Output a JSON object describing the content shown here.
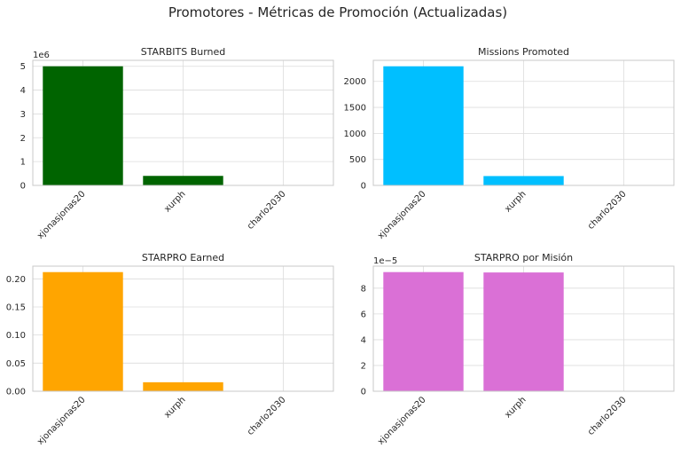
{
  "figure": {
    "title": "Promotores - Métricas de Promoción (Actualizadas)"
  },
  "chart_data": [
    {
      "type": "bar",
      "title": "STARBITS Burned",
      "categories": [
        "xjonasjonas20",
        "xurph",
        "charlo2030"
      ],
      "values": [
        5000000,
        400000,
        0
      ],
      "ylim": [
        0,
        5250000
      ],
      "yticks": [
        0,
        1000000,
        2000000,
        3000000,
        4000000,
        5000000
      ],
      "ytick_labels": [
        "0",
        "1",
        "2",
        "3",
        "4",
        "5"
      ],
      "offset_label": "1e6",
      "color": "#006400",
      "grid": true
    },
    {
      "type": "bar",
      "title": "Missions Promoted",
      "categories": [
        "xjonasjonas20",
        "xurph",
        "charlo2030"
      ],
      "values": [
        2290,
        180,
        0
      ],
      "ylim": [
        0,
        2404.5
      ],
      "yticks": [
        0,
        500,
        1000,
        1500,
        2000
      ],
      "ytick_labels": [
        "0",
        "500",
        "1000",
        "1500",
        "2000"
      ],
      "offset_label": "",
      "color": "#00bfff",
      "grid": true
    },
    {
      "type": "bar",
      "title": "STARPRO Earned",
      "categories": [
        "xjonasjonas20",
        "xurph",
        "charlo2030"
      ],
      "values": [
        0.212,
        0.016,
        0
      ],
      "ylim": [
        0,
        0.2226
      ],
      "yticks": [
        0,
        0.05,
        0.1,
        0.15,
        0.2
      ],
      "ytick_labels": [
        "0.00",
        "0.05",
        "0.10",
        "0.15",
        "0.20"
      ],
      "offset_label": "",
      "color": "#ffa500",
      "grid": true
    },
    {
      "type": "bar",
      "title": "STARPRO por Misión",
      "categories": [
        "xjonasjonas20",
        "xurph",
        "charlo2030"
      ],
      "values": [
        9.25e-05,
        9.22e-05,
        0
      ],
      "ylim": [
        0,
        9.71e-05
      ],
      "yticks": [
        0,
        2e-05,
        4e-05,
        6e-05,
        8e-05
      ],
      "ytick_labels": [
        "0",
        "2",
        "4",
        "6",
        "8"
      ],
      "offset_label": "1e−5",
      "color": "#da70d6",
      "grid": true
    }
  ]
}
